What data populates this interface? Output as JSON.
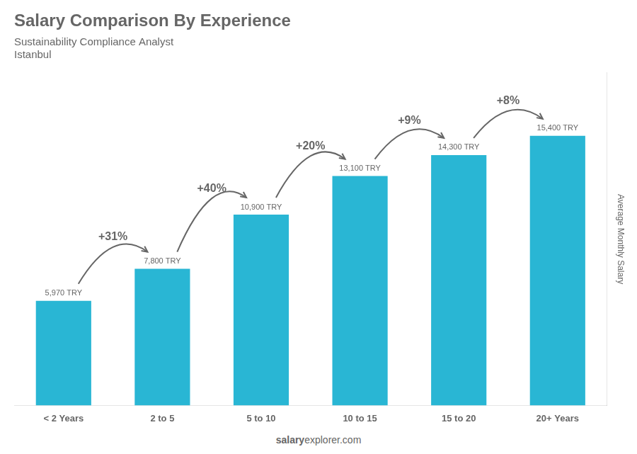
{
  "chart_data": {
    "type": "bar",
    "title": "Salary Comparison By Experience",
    "subtitle": "Sustainability Compliance Analyst",
    "city": "Istanbul",
    "footer": [
      "salary",
      "explorer.com"
    ],
    "categories": [
      "< 2 Years",
      "2 to 5",
      "5 to 10",
      "10 to 15",
      "15 to 20",
      "20+ Years"
    ],
    "values": [
      5970,
      7800,
      10900,
      13100,
      14300,
      15400
    ],
    "value_labels": [
      "5,970 TRY",
      "7,800 TRY",
      "10,900 TRY",
      "13,100 TRY",
      "14,300 TRY",
      "15,400 TRY"
    ],
    "data_labels": true,
    "color": "#29b6d4",
    "ylabel": "Average Monthly Salary",
    "ylim": [
      0,
      19000
    ],
    "tick_labels": "x",
    "grid": false,
    "annotations": [
      "+31%",
      "+40%",
      "+20%",
      "+9%",
      "+8%"
    ]
  }
}
